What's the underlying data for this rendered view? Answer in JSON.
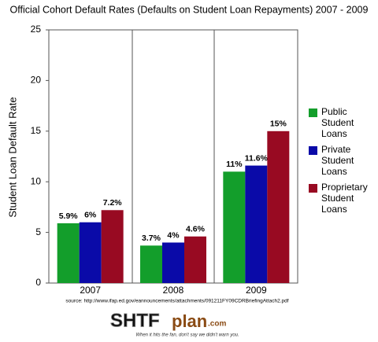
{
  "chart_data": {
    "type": "bar",
    "title": "Official Cohort Default Rates (Defaults on Student Loan Repayments) 2007 - 2009",
    "y_label": "Student Loan Default Rate",
    "categories": [
      "2007",
      "2008",
      "2009"
    ],
    "series": [
      {
        "name": "Public Student Loans",
        "color": "#139e2b",
        "values": [
          5.9,
          3.7,
          11
        ],
        "value_labels": [
          "5.9%",
          "3.7%",
          "11%"
        ]
      },
      {
        "name": "Private Student Loans",
        "color": "#0a0aa8",
        "values": [
          6,
          4,
          11.6
        ],
        "value_labels": [
          "6%",
          "4%",
          "11.6%"
        ]
      },
      {
        "name": "Proprietary Student Loans",
        "color": "#980a22",
        "values": [
          7.2,
          4.6,
          15
        ],
        "value_labels": [
          "7.2%",
          "4.6%",
          "15%"
        ]
      }
    ],
    "ylim": [
      0,
      25
    ],
    "yticks": [
      0,
      5,
      10,
      15,
      20,
      25
    ],
    "grid": false,
    "legend": "right",
    "source": "source: http://www.ifap.ed.gov/eannouncements/attachments/091211FY09CDRBriefingAttach2.pdf"
  },
  "logo": {
    "name": "SHTF",
    "suffix": "plan",
    "domain": ".com",
    "tagline": "When it hits the fan, don't say we didn't warn you."
  }
}
